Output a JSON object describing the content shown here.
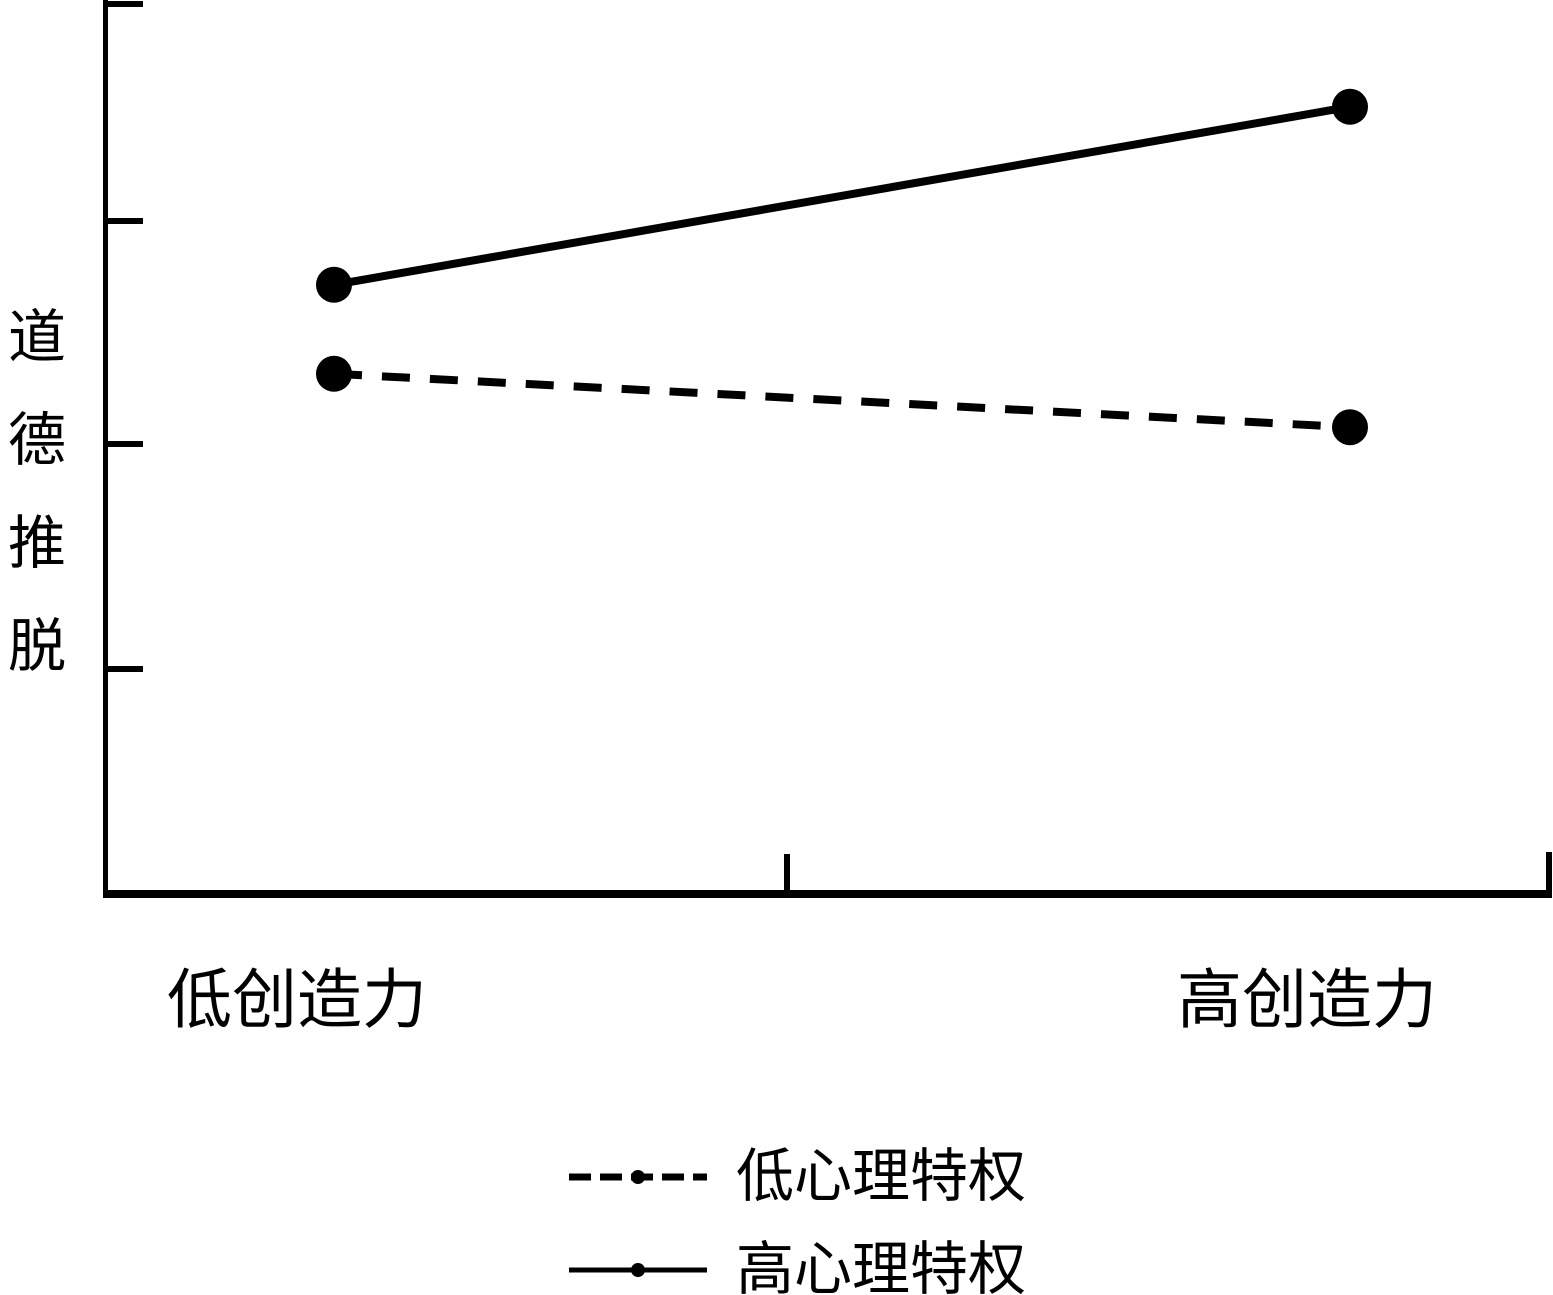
{
  "figure": {
    "background_color": "#ffffff",
    "ink_color": "#000000"
  },
  "chart_data": {
    "type": "line",
    "title": "",
    "xlabel": "",
    "ylabel": "道德推脱",
    "categories": [
      "低创造力",
      "高创造力"
    ],
    "series": [
      {
        "name": "低心理特权",
        "line_style": "dashed",
        "marker": "filled-circle",
        "values": [
          0.58,
          0.52
        ]
      },
      {
        "name": "高心理特权",
        "line_style": "solid",
        "marker": "filled-circle",
        "values": [
          0.68,
          0.88
        ]
      }
    ],
    "ylim": [
      0,
      1
    ],
    "y_tick_count": 4,
    "x_mid_tick": true,
    "tick_labels": "none (axes unlabeled)",
    "grid": false,
    "legend_position": "below-chart-center",
    "note": "Axis has no numeric labels; values are normalized estimates of point heights (0 = x-axis, 1 = top of y-axis)."
  }
}
